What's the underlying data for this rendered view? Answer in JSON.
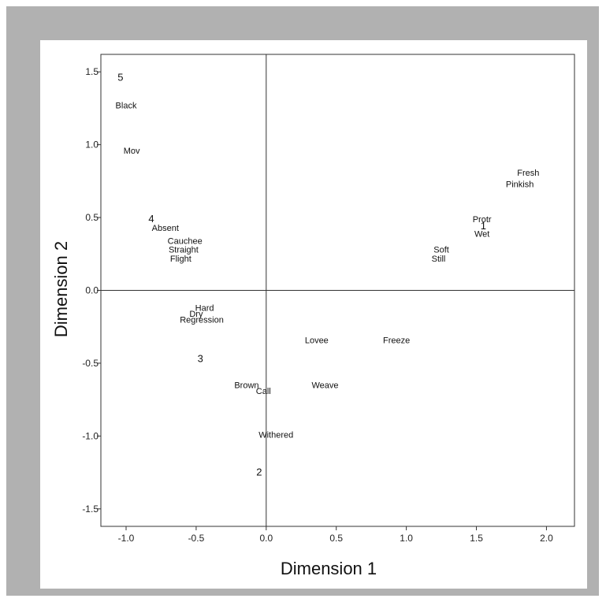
{
  "chart_data": {
    "type": "scatter",
    "title": "",
    "xlabel": "Dimension 1",
    "ylabel": "Dimension 2",
    "xlim": [
      -1.18,
      2.2
    ],
    "ylim": [
      -1.62,
      1.62
    ],
    "xticks": [
      "-1.0",
      "-0.5",
      "0.0",
      "0.5",
      "1.0",
      "1.5",
      "2.0"
    ],
    "yticks": [
      "1.5",
      "1.0",
      "0.5",
      "0.0",
      "-0.5",
      "-1.0",
      "-1.5"
    ],
    "reference_lines": {
      "x": 0,
      "y": 0
    },
    "grid": false,
    "points": [
      {
        "label": "5",
        "x": -1.04,
        "y": 1.46,
        "kind": "number"
      },
      {
        "label": "Black",
        "x": -1.0,
        "y": 1.27
      },
      {
        "label": "Mov",
        "x": -0.96,
        "y": 0.96
      },
      {
        "label": "4",
        "x": -0.82,
        "y": 0.49,
        "kind": "number"
      },
      {
        "label": "Absent",
        "x": -0.72,
        "y": 0.43
      },
      {
        "label": "Cauchee",
        "x": -0.58,
        "y": 0.34
      },
      {
        "label": "Straight",
        "x": -0.59,
        "y": 0.28
      },
      {
        "label": "Flight",
        "x": -0.61,
        "y": 0.22
      },
      {
        "label": "Hard",
        "x": -0.44,
        "y": -0.12
      },
      {
        "label": "Dry",
        "x": -0.5,
        "y": -0.16
      },
      {
        "label": "Regression",
        "x": -0.46,
        "y": -0.2
      },
      {
        "label": "3",
        "x": -0.47,
        "y": -0.47,
        "kind": "number"
      },
      {
        "label": "Brown",
        "x": -0.14,
        "y": -0.65
      },
      {
        "label": "Call",
        "x": -0.02,
        "y": -0.69
      },
      {
        "label": "Withered",
        "x": 0.07,
        "y": -0.99
      },
      {
        "label": "2",
        "x": -0.05,
        "y": -1.25,
        "kind": "number"
      },
      {
        "label": "Lovee",
        "x": 0.36,
        "y": -0.34
      },
      {
        "label": "Weave",
        "x": 0.42,
        "y": -0.65
      },
      {
        "label": "Freeze",
        "x": 0.93,
        "y": -0.34
      },
      {
        "label": "Soft",
        "x": 1.25,
        "y": 0.28
      },
      {
        "label": "Still",
        "x": 1.23,
        "y": 0.22
      },
      {
        "label": "Protr",
        "x": 1.54,
        "y": 0.49
      },
      {
        "label": "1",
        "x": 1.55,
        "y": 0.44,
        "kind": "number"
      },
      {
        "label": "Wet",
        "x": 1.54,
        "y": 0.39
      },
      {
        "label": "Fresh",
        "x": 1.87,
        "y": 0.81
      },
      {
        "label": "Pinkish",
        "x": 1.81,
        "y": 0.73
      }
    ]
  }
}
